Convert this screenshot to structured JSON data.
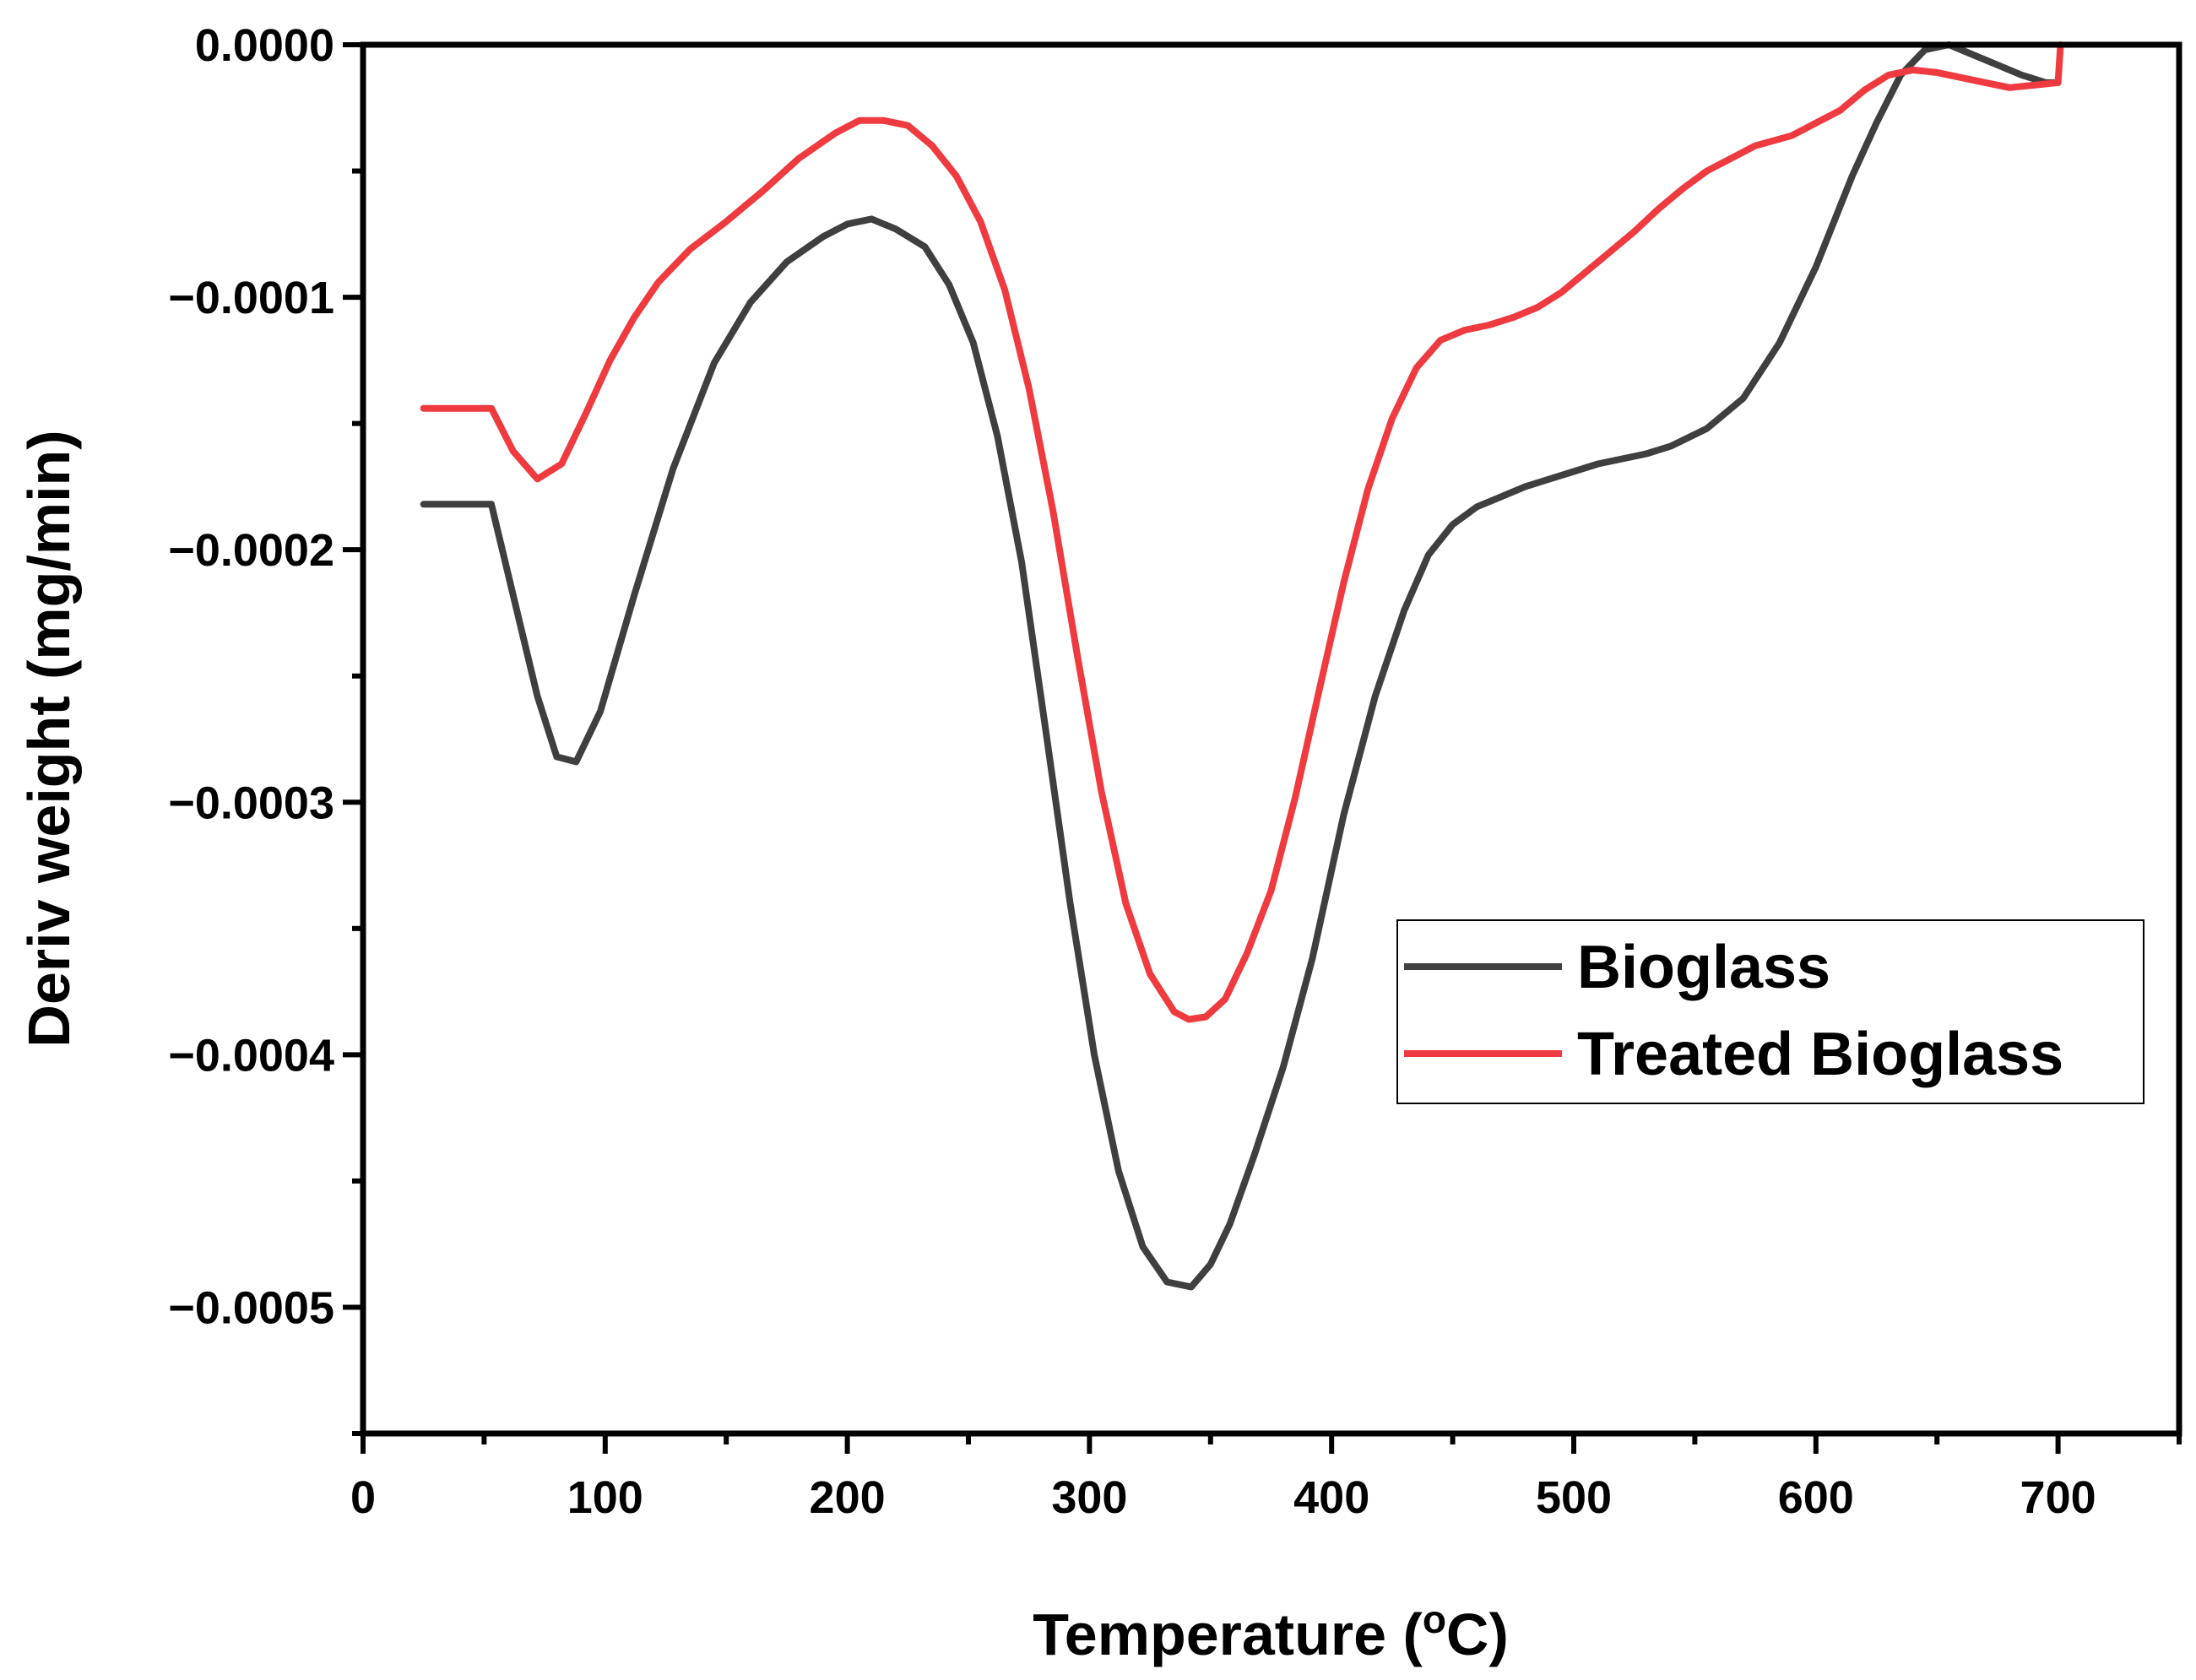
{
  "chart_data": {
    "type": "line",
    "title": "",
    "xlabel": "Temperature (",
    "xlabel_sup": "o",
    "xlabel_suffix": "C)",
    "ylabel": "Deriv weight (mg/min)",
    "xlim": [
      0,
      750
    ],
    "ylim": [
      -0.00055,
      0.0
    ],
    "x_ticks": [
      0,
      100,
      200,
      300,
      400,
      500,
      600,
      700
    ],
    "x_tick_labels": [
      "0",
      "100",
      "200",
      "300",
      "400",
      "500",
      "600",
      "700"
    ],
    "x_minor_ticks": [
      50,
      150,
      250,
      350,
      450,
      550,
      650,
      750
    ],
    "y_ticks": [
      0.0,
      -0.0001,
      -0.0002,
      -0.0003,
      -0.0004,
      -0.0005
    ],
    "y_tick_labels": [
      "0.0000",
      "−0.0001",
      "−0.0002",
      "−0.0003",
      "−0.0004",
      "−0.0005"
    ],
    "y_minor_ticks": [
      -5e-05,
      -0.00015,
      -0.00025,
      -0.00035,
      -0.00045,
      -0.00055
    ],
    "grid": false,
    "legend_position": "center-right",
    "series": [
      {
        "name": "Bioglass",
        "color": "#3f3f3f",
        "x": [
          25,
          53,
          62,
          72,
          80,
          88,
          98,
          112,
          128,
          145,
          160,
          175,
          190,
          200,
          210,
          220,
          232,
          242,
          252,
          262,
          272,
          282,
          292,
          302,
          312,
          322,
          332,
          342,
          350,
          358,
          368,
          380,
          392,
          405,
          418,
          430,
          440,
          450,
          460,
          470,
          480,
          490,
          500,
          510,
          520,
          530,
          540,
          555,
          570,
          585,
          600,
          615,
          625,
          635,
          645,
          655,
          665,
          675,
          685,
          695,
          700
        ],
        "y": [
          -0.000182,
          -0.000182,
          -0.000218,
          -0.000258,
          -0.000282,
          -0.000284,
          -0.000264,
          -0.000218,
          -0.000168,
          -0.000126,
          -0.000102,
          -8.6e-05,
          -7.6e-05,
          -7.1e-05,
          -6.9e-05,
          -7.3e-05,
          -8e-05,
          -9.5e-05,
          -0.000118,
          -0.000155,
          -0.000205,
          -0.000272,
          -0.00034,
          -0.0004,
          -0.000446,
          -0.000476,
          -0.00049,
          -0.000492,
          -0.000483,
          -0.000467,
          -0.00044,
          -0.000405,
          -0.000362,
          -0.000305,
          -0.000258,
          -0.000224,
          -0.000202,
          -0.00019,
          -0.000183,
          -0.000179,
          -0.000175,
          -0.000172,
          -0.000169,
          -0.000166,
          -0.000164,
          -0.000162,
          -0.000159,
          -0.000152,
          -0.00014,
          -0.000118,
          -8.8e-05,
          -5.2e-05,
          -3.1e-05,
          -1.2e-05,
          -2e-06,
          0.0,
          -4e-06,
          -8e-06,
          -1.2e-05,
          -1.5e-05,
          -1.5e-05
        ]
      },
      {
        "name": "Treated Bioglass",
        "color": "#ef3a3f",
        "x": [
          25,
          53,
          62,
          72,
          82,
          92,
          102,
          112,
          122,
          135,
          150,
          165,
          180,
          195,
          205,
          215,
          225,
          235,
          245,
          255,
          265,
          275,
          285,
          295,
          305,
          315,
          325,
          335,
          341,
          348,
          356,
          365,
          375,
          385,
          395,
          405,
          415,
          425,
          435,
          445,
          455,
          465,
          475,
          485,
          495,
          505,
          515,
          525,
          535,
          545,
          555,
          565,
          575,
          590,
          600,
          610,
          620,
          630,
          640,
          650,
          660,
          670,
          680,
          690,
          700,
          701
        ],
        "y": [
          -0.000144,
          -0.000144,
          -0.000161,
          -0.000172,
          -0.000166,
          -0.000146,
          -0.000125,
          -0.000108,
          -9.4e-05,
          -8.1e-05,
          -7e-05,
          -5.8e-05,
          -4.5e-05,
          -3.5e-05,
          -3e-05,
          -3e-05,
          -3.2e-05,
          -4e-05,
          -5.2e-05,
          -7e-05,
          -9.7e-05,
          -0.000136,
          -0.000185,
          -0.000242,
          -0.000296,
          -0.00034,
          -0.000368,
          -0.000383,
          -0.000386,
          -0.000385,
          -0.000378,
          -0.00036,
          -0.000335,
          -0.000298,
          -0.000255,
          -0.000213,
          -0.000176,
          -0.000148,
          -0.000128,
          -0.000117,
          -0.000113,
          -0.000111,
          -0.000108,
          -0.000104,
          -9.8e-05,
          -9e-05,
          -8.2e-05,
          -7.4e-05,
          -6.5e-05,
          -5.7e-05,
          -5e-05,
          -4.5e-05,
          -4e-05,
          -3.6e-05,
          -3.1e-05,
          -2.6e-05,
          -1.8e-05,
          -1.2e-05,
          -1e-05,
          -1.1e-05,
          -1.3e-05,
          -1.5e-05,
          -1.7e-05,
          -1.6e-05,
          -1.5e-05,
          0.0
        ]
      }
    ]
  }
}
